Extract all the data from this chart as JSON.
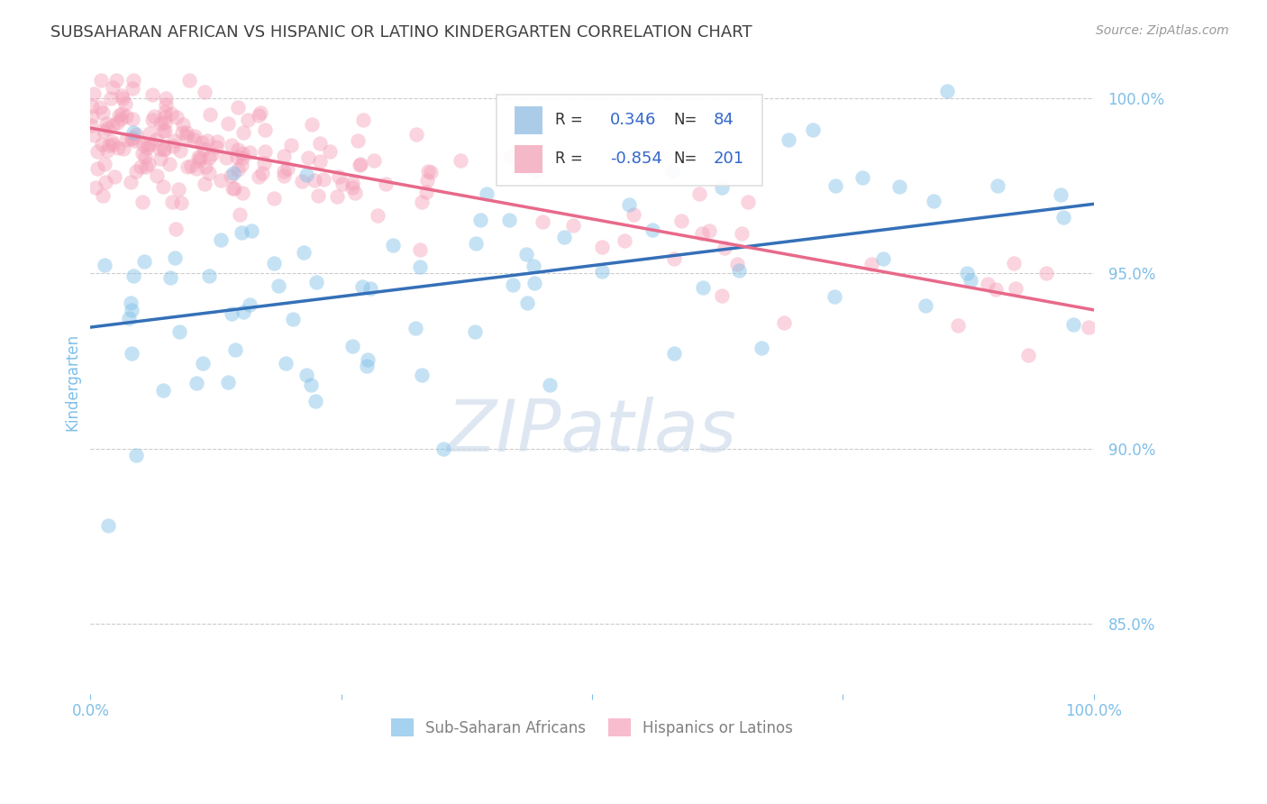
{
  "title": "SUBSAHARAN AFRICAN VS HISPANIC OR LATINO KINDERGARTEN CORRELATION CHART",
  "source": "Source: ZipAtlas.com",
  "ylabel": "Kindergarten",
  "xlim": [
    0.0,
    1.0
  ],
  "ylim": [
    0.83,
    1.008
  ],
  "yticks": [
    0.85,
    0.9,
    0.95,
    1.0
  ],
  "ytick_labels": [
    "85.0%",
    "90.0%",
    "95.0%",
    "100.0%"
  ],
  "xtick_labels": [
    "0.0%",
    "",
    "",
    "",
    "100.0%"
  ],
  "background_color": "#ffffff",
  "watermark_text": "ZIPatlas",
  "legend_R_blue": "0.346",
  "legend_N_blue": "84",
  "legend_R_pink": "-0.854",
  "legend_N_pink": "201",
  "blue_color": "#7fbfe8",
  "pink_color": "#f4a0b8",
  "blue_line_color": "#3570b8",
  "pink_line_color": "#e8698a",
  "title_color": "#404040",
  "axis_label_color": "#7fbfe8",
  "tick_color": "#7fbfe8",
  "grid_color": "#cccccc",
  "source_color": "#999999",
  "watermark_color": "#c8d8e8",
  "legend_box_color": "#dddddd",
  "legend_text_color": "#333333",
  "legend_value_color": "#3366cc"
}
